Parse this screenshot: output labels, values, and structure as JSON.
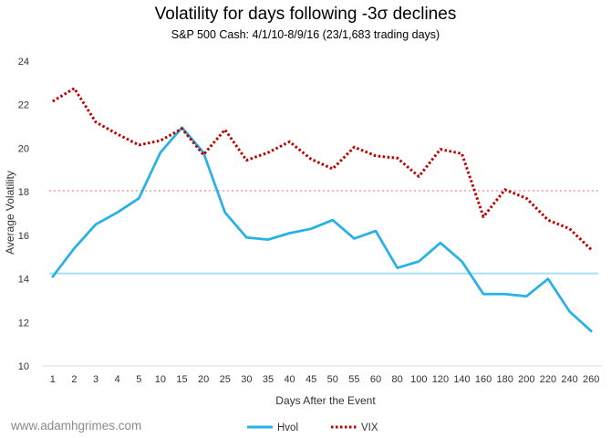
{
  "chart_data": {
    "type": "line",
    "title": "Volatility for days following -3σ declines",
    "subtitle": "S&P 500 Cash: 4/1/10-8/9/16 (23/1,683 trading days)",
    "xlabel": "Days After the Event",
    "ylabel": "Average Volatility",
    "ylim": [
      10,
      24
    ],
    "yticks": [
      10,
      12,
      14,
      16,
      18,
      20,
      22,
      24
    ],
    "categories": [
      "1",
      "2",
      "3",
      "4",
      "5",
      "10",
      "15",
      "20",
      "25",
      "30",
      "35",
      "40",
      "45",
      "50",
      "55",
      "60",
      "80",
      "100",
      "120",
      "140",
      "160",
      "180",
      "200",
      "220",
      "240",
      "260"
    ],
    "series": [
      {
        "name": "Hvol",
        "color": "#27b1e6",
        "style": "solid",
        "values": [
          14.1,
          15.4,
          16.5,
          17.05,
          17.7,
          19.8,
          20.95,
          19.8,
          17.05,
          15.9,
          15.8,
          16.1,
          16.3,
          16.7,
          15.85,
          16.2,
          14.5,
          14.8,
          15.65,
          14.8,
          13.3,
          13.3,
          13.2,
          14.0,
          12.5,
          11.6
        ]
      },
      {
        "name": "VIX",
        "color": "#c00000",
        "style": "dotted",
        "values": [
          22.15,
          22.75,
          21.2,
          20.65,
          20.15,
          20.35,
          20.9,
          19.7,
          20.85,
          19.45,
          19.8,
          20.3,
          19.5,
          19.05,
          20.05,
          19.65,
          19.55,
          18.7,
          19.95,
          19.75,
          16.85,
          18.1,
          17.7,
          16.7,
          16.3,
          15.35
        ]
      }
    ],
    "reference_lines": [
      {
        "label": "Hvol average",
        "value": 14.25,
        "color": "#a6e0f2",
        "style": "solid"
      },
      {
        "label": "VIX average",
        "value": 18.05,
        "color": "#f2b8b8",
        "style": "dotted"
      }
    ],
    "legend_position": "bottom",
    "grid": false
  },
  "watermark": "www.adamhgrimes.com"
}
